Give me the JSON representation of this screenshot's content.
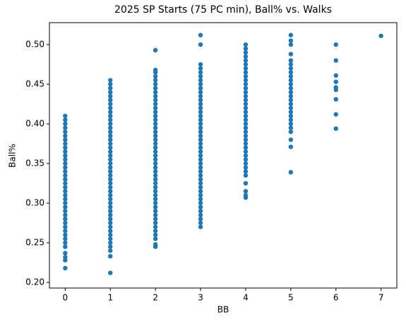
{
  "chart_data": {
    "type": "scatter",
    "title": "2025 SP Starts (75 PC min), Ball% vs. Walks",
    "xlabel": "BB",
    "ylabel": "Ball%",
    "color": "#1f77b4",
    "xlim": [
      -0.35,
      7.35
    ],
    "ylim": [
      0.1929,
      0.5277
    ],
    "xticks": [
      0,
      1,
      2,
      3,
      4,
      5,
      6,
      7
    ],
    "yticks": [
      {
        "value": 0.2,
        "label": "0.20"
      },
      {
        "value": 0.25,
        "label": "0.25"
      },
      {
        "value": 0.3,
        "label": "0.30"
      },
      {
        "value": 0.35,
        "label": "0.35"
      },
      {
        "value": 0.4,
        "label": "0.40"
      },
      {
        "value": 0.45,
        "label": "0.45"
      },
      {
        "value": 0.5,
        "label": "0.50"
      }
    ],
    "points": [
      [
        0,
        0.218
      ],
      [
        0,
        0.228
      ],
      [
        0,
        0.232
      ],
      [
        0,
        0.237
      ],
      [
        0,
        0.245
      ],
      [
        0,
        0.25
      ],
      [
        0,
        0.255
      ],
      [
        0,
        0.26
      ],
      [
        0,
        0.265
      ],
      [
        0,
        0.27
      ],
      [
        0,
        0.275
      ],
      [
        0,
        0.28
      ],
      [
        0,
        0.285
      ],
      [
        0,
        0.29
      ],
      [
        0,
        0.295
      ],
      [
        0,
        0.3
      ],
      [
        0,
        0.305
      ],
      [
        0,
        0.31
      ],
      [
        0,
        0.315
      ],
      [
        0,
        0.32
      ],
      [
        0,
        0.325
      ],
      [
        0,
        0.33
      ],
      [
        0,
        0.335
      ],
      [
        0,
        0.34
      ],
      [
        0,
        0.345
      ],
      [
        0,
        0.35
      ],
      [
        0,
        0.355
      ],
      [
        0,
        0.36
      ],
      [
        0,
        0.365
      ],
      [
        0,
        0.37
      ],
      [
        0,
        0.375
      ],
      [
        0,
        0.38
      ],
      [
        0,
        0.385
      ],
      [
        0,
        0.39
      ],
      [
        0,
        0.395
      ],
      [
        0,
        0.4
      ],
      [
        0,
        0.405
      ],
      [
        0,
        0.41
      ],
      [
        1,
        0.212
      ],
      [
        1,
        0.233
      ],
      [
        1,
        0.24
      ],
      [
        1,
        0.245
      ],
      [
        1,
        0.25
      ],
      [
        1,
        0.255
      ],
      [
        1,
        0.26
      ],
      [
        1,
        0.265
      ],
      [
        1,
        0.27
      ],
      [
        1,
        0.275
      ],
      [
        1,
        0.28
      ],
      [
        1,
        0.285
      ],
      [
        1,
        0.29
      ],
      [
        1,
        0.295
      ],
      [
        1,
        0.3
      ],
      [
        1,
        0.305
      ],
      [
        1,
        0.31
      ],
      [
        1,
        0.315
      ],
      [
        1,
        0.32
      ],
      [
        1,
        0.325
      ],
      [
        1,
        0.33
      ],
      [
        1,
        0.335
      ],
      [
        1,
        0.34
      ],
      [
        1,
        0.345
      ],
      [
        1,
        0.35
      ],
      [
        1,
        0.355
      ],
      [
        1,
        0.36
      ],
      [
        1,
        0.365
      ],
      [
        1,
        0.37
      ],
      [
        1,
        0.375
      ],
      [
        1,
        0.38
      ],
      [
        1,
        0.385
      ],
      [
        1,
        0.39
      ],
      [
        1,
        0.395
      ],
      [
        1,
        0.4
      ],
      [
        1,
        0.405
      ],
      [
        1,
        0.41
      ],
      [
        1,
        0.415
      ],
      [
        1,
        0.42
      ],
      [
        1,
        0.425
      ],
      [
        1,
        0.43
      ],
      [
        1,
        0.435
      ],
      [
        1,
        0.44
      ],
      [
        1,
        0.445
      ],
      [
        1,
        0.45
      ],
      [
        1,
        0.455
      ],
      [
        2,
        0.245
      ],
      [
        2,
        0.248
      ],
      [
        2,
        0.255
      ],
      [
        2,
        0.26
      ],
      [
        2,
        0.265
      ],
      [
        2,
        0.27
      ],
      [
        2,
        0.275
      ],
      [
        2,
        0.28
      ],
      [
        2,
        0.285
      ],
      [
        2,
        0.29
      ],
      [
        2,
        0.295
      ],
      [
        2,
        0.3
      ],
      [
        2,
        0.305
      ],
      [
        2,
        0.31
      ],
      [
        2,
        0.315
      ],
      [
        2,
        0.32
      ],
      [
        2,
        0.325
      ],
      [
        2,
        0.33
      ],
      [
        2,
        0.335
      ],
      [
        2,
        0.34
      ],
      [
        2,
        0.345
      ],
      [
        2,
        0.35
      ],
      [
        2,
        0.355
      ],
      [
        2,
        0.36
      ],
      [
        2,
        0.365
      ],
      [
        2,
        0.37
      ],
      [
        2,
        0.375
      ],
      [
        2,
        0.38
      ],
      [
        2,
        0.385
      ],
      [
        2,
        0.39
      ],
      [
        2,
        0.395
      ],
      [
        2,
        0.4
      ],
      [
        2,
        0.405
      ],
      [
        2,
        0.41
      ],
      [
        2,
        0.415
      ],
      [
        2,
        0.42
      ],
      [
        2,
        0.425
      ],
      [
        2,
        0.43
      ],
      [
        2,
        0.435
      ],
      [
        2,
        0.44
      ],
      [
        2,
        0.445
      ],
      [
        2,
        0.45
      ],
      [
        2,
        0.455
      ],
      [
        2,
        0.46
      ],
      [
        2,
        0.465
      ],
      [
        2,
        0.468
      ],
      [
        2,
        0.493
      ],
      [
        3,
        0.27
      ],
      [
        3,
        0.275
      ],
      [
        3,
        0.28
      ],
      [
        3,
        0.285
      ],
      [
        3,
        0.29
      ],
      [
        3,
        0.295
      ],
      [
        3,
        0.3
      ],
      [
        3,
        0.305
      ],
      [
        3,
        0.31
      ],
      [
        3,
        0.315
      ],
      [
        3,
        0.32
      ],
      [
        3,
        0.325
      ],
      [
        3,
        0.33
      ],
      [
        3,
        0.335
      ],
      [
        3,
        0.34
      ],
      [
        3,
        0.345
      ],
      [
        3,
        0.35
      ],
      [
        3,
        0.355
      ],
      [
        3,
        0.36
      ],
      [
        3,
        0.365
      ],
      [
        3,
        0.37
      ],
      [
        3,
        0.375
      ],
      [
        3,
        0.38
      ],
      [
        3,
        0.385
      ],
      [
        3,
        0.39
      ],
      [
        3,
        0.395
      ],
      [
        3,
        0.4
      ],
      [
        3,
        0.405
      ],
      [
        3,
        0.41
      ],
      [
        3,
        0.415
      ],
      [
        3,
        0.42
      ],
      [
        3,
        0.425
      ],
      [
        3,
        0.43
      ],
      [
        3,
        0.435
      ],
      [
        3,
        0.44
      ],
      [
        3,
        0.445
      ],
      [
        3,
        0.45
      ],
      [
        3,
        0.455
      ],
      [
        3,
        0.46
      ],
      [
        3,
        0.465
      ],
      [
        3,
        0.47
      ],
      [
        3,
        0.475
      ],
      [
        3,
        0.5
      ],
      [
        3,
        0.512
      ],
      [
        4,
        0.307
      ],
      [
        4,
        0.31
      ],
      [
        4,
        0.315
      ],
      [
        4,
        0.325
      ],
      [
        4,
        0.335
      ],
      [
        4,
        0.34
      ],
      [
        4,
        0.345
      ],
      [
        4,
        0.35
      ],
      [
        4,
        0.355
      ],
      [
        4,
        0.36
      ],
      [
        4,
        0.365
      ],
      [
        4,
        0.37
      ],
      [
        4,
        0.375
      ],
      [
        4,
        0.38
      ],
      [
        4,
        0.385
      ],
      [
        4,
        0.39
      ],
      [
        4,
        0.395
      ],
      [
        4,
        0.4
      ],
      [
        4,
        0.405
      ],
      [
        4,
        0.41
      ],
      [
        4,
        0.415
      ],
      [
        4,
        0.42
      ],
      [
        4,
        0.425
      ],
      [
        4,
        0.43
      ],
      [
        4,
        0.435
      ],
      [
        4,
        0.44
      ],
      [
        4,
        0.445
      ],
      [
        4,
        0.45
      ],
      [
        4,
        0.455
      ],
      [
        4,
        0.46
      ],
      [
        4,
        0.465
      ],
      [
        4,
        0.47
      ],
      [
        4,
        0.475
      ],
      [
        4,
        0.48
      ],
      [
        4,
        0.485
      ],
      [
        4,
        0.49
      ],
      [
        4,
        0.495
      ],
      [
        4,
        0.5
      ],
      [
        5,
        0.339
      ],
      [
        5,
        0.371
      ],
      [
        5,
        0.38
      ],
      [
        5,
        0.39
      ],
      [
        5,
        0.395
      ],
      [
        5,
        0.4
      ],
      [
        5,
        0.405
      ],
      [
        5,
        0.41
      ],
      [
        5,
        0.415
      ],
      [
        5,
        0.42
      ],
      [
        5,
        0.425
      ],
      [
        5,
        0.43
      ],
      [
        5,
        0.435
      ],
      [
        5,
        0.44
      ],
      [
        5,
        0.445
      ],
      [
        5,
        0.45
      ],
      [
        5,
        0.455
      ],
      [
        5,
        0.46
      ],
      [
        5,
        0.465
      ],
      [
        5,
        0.47
      ],
      [
        5,
        0.475
      ],
      [
        5,
        0.48
      ],
      [
        5,
        0.488
      ],
      [
        5,
        0.5
      ],
      [
        5,
        0.505
      ],
      [
        5,
        0.512
      ],
      [
        6,
        0.394
      ],
      [
        6,
        0.412
      ],
      [
        6,
        0.431
      ],
      [
        6,
        0.443
      ],
      [
        6,
        0.446
      ],
      [
        6,
        0.453
      ],
      [
        6,
        0.461
      ],
      [
        6,
        0.48
      ],
      [
        6,
        0.5
      ],
      [
        7,
        0.511
      ]
    ]
  }
}
